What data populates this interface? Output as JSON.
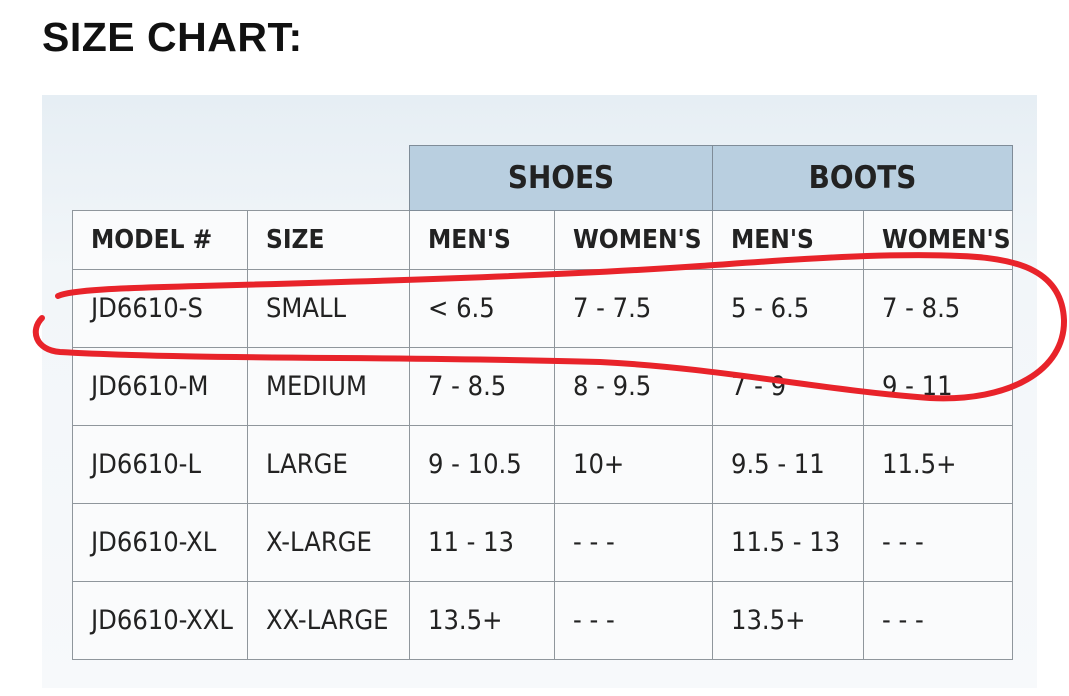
{
  "title": "SIZE CHART:",
  "groups": [
    "SHOES",
    "BOOTS"
  ],
  "columns": [
    "MODEL #",
    "SIZE",
    "MEN'S",
    "WOMEN'S",
    "MEN'S",
    "WOMEN'S"
  ],
  "rows": [
    [
      "JD6610-S",
      "SMALL",
      "< 6.5",
      "7 - 7.5",
      "5 - 6.5",
      "7 - 8.5"
    ],
    [
      "JD6610-M",
      "MEDIUM",
      "7 - 8.5",
      "8 - 9.5",
      "7 - 9",
      "9 - 11"
    ],
    [
      "JD6610-L",
      "LARGE",
      "9 - 10.5",
      "10+",
      "9.5 - 11",
      "11.5+"
    ],
    [
      "JD6610-XL",
      "X-LARGE",
      "11 - 13",
      "- - -",
      "11.5 - 13",
      "- - -"
    ],
    [
      "JD6610-XXL",
      "XX-LARGE",
      "13.5+",
      "- - -",
      "13.5+",
      "- - -"
    ]
  ],
  "highlight_color": "#e8232a",
  "header_color": "#b9cfe0"
}
